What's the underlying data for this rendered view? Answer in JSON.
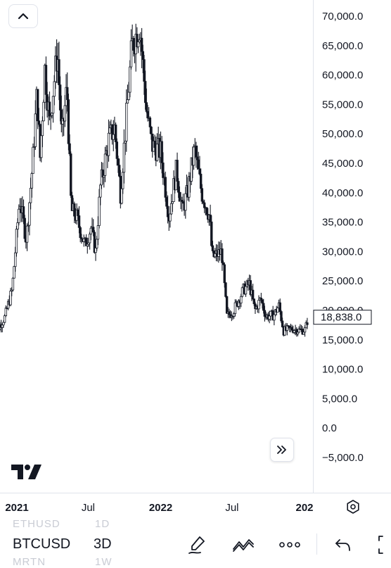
{
  "chart_data": {
    "type": "candlestick",
    "symbol": "BTCUSD",
    "interval": "3D",
    "ylim": [
      -7000,
      70500
    ],
    "y_ticks": [
      -5000,
      0,
      5000,
      10000,
      15000,
      20000,
      25000,
      30000,
      35000,
      40000,
      45000,
      50000,
      55000,
      60000,
      65000,
      70000
    ],
    "y_tick_labels": [
      "−5,000.0",
      "0.0",
      "5,000.0",
      "10,000.0",
      "15,000.0",
      "20,000.0",
      "25,000.0",
      "30,000.0",
      "35,000.0",
      "40,000.0",
      "45,000.0",
      "50,000.0",
      "55,000.0",
      "60,000.0",
      "65,000.0",
      "70,000.0"
    ],
    "x_tick_labels": [
      {
        "label": "2021",
        "date": "2021-01-01",
        "bold": true
      },
      {
        "label": "Jul",
        "date": "2021-07-01",
        "bold": false
      },
      {
        "label": "2022",
        "date": "2022-01-01",
        "bold": true
      },
      {
        "label": "Jul",
        "date": "2022-07-01",
        "bold": false
      },
      {
        "label": "202",
        "date": "2023-01-01",
        "bold": true
      }
    ],
    "last_price": 18838,
    "last_price_label": "18,838.0",
    "series": [
      {
        "points": [
          [
            "2020-11-01",
            15500
          ],
          [
            "2020-12-01",
            18800
          ],
          [
            "2020-12-20",
            23500
          ],
          [
            "2021-01-08",
            39000
          ],
          [
            "2021-01-25",
            32000
          ],
          [
            "2021-02-10",
            45000
          ],
          [
            "2021-02-21",
            57000
          ],
          [
            "2021-03-01",
            46000
          ],
          [
            "2021-03-13",
            61000
          ],
          [
            "2021-03-25",
            52000
          ],
          [
            "2021-04-14",
            64000
          ],
          [
            "2021-04-25",
            49000
          ],
          [
            "2021-05-08",
            58000
          ],
          [
            "2021-05-19",
            37000
          ],
          [
            "2021-06-01",
            36000
          ],
          [
            "2021-06-22",
            31000
          ],
          [
            "2021-07-08",
            34000
          ],
          [
            "2021-07-20",
            30000
          ],
          [
            "2021-08-01",
            41000
          ],
          [
            "2021-08-22",
            49000
          ],
          [
            "2021-09-06",
            51000
          ],
          [
            "2021-09-21",
            40000
          ],
          [
            "2021-10-05",
            52000
          ],
          [
            "2021-10-20",
            65000
          ],
          [
            "2021-11-09",
            68500
          ],
          [
            "2021-11-26",
            54000
          ],
          [
            "2021-12-10",
            48000
          ],
          [
            "2022-01-01",
            47000
          ],
          [
            "2022-01-22",
            36000
          ],
          [
            "2022-02-10",
            44000
          ],
          [
            "2022-02-24",
            37000
          ],
          [
            "2022-03-10",
            40000
          ],
          [
            "2022-03-28",
            47500
          ],
          [
            "2022-04-15",
            40000
          ],
          [
            "2022-05-05",
            36000
          ],
          [
            "2022-05-12",
            29000
          ],
          [
            "2022-06-05",
            30000
          ],
          [
            "2022-06-18",
            19000
          ],
          [
            "2022-07-05",
            20000
          ],
          [
            "2022-07-30",
            23500
          ],
          [
            "2022-08-14",
            24500
          ],
          [
            "2022-08-28",
            20000
          ],
          [
            "2022-09-12",
            22000
          ],
          [
            "2022-09-25",
            19000
          ],
          [
            "2022-10-15",
            19200
          ],
          [
            "2022-10-28",
            20800
          ],
          [
            "2022-11-09",
            16500
          ],
          [
            "2022-11-30",
            16900
          ],
          [
            "2022-12-20",
            16600
          ],
          [
            "2023-01-03",
            16700
          ],
          [
            "2023-01-10",
            18838
          ]
        ]
      }
    ]
  },
  "toolbar": {
    "ghost_above": [
      "ETHUSD",
      "1D"
    ],
    "symbol": "BTCUSD",
    "interval": "3D",
    "ghost_below": [
      "MRTN",
      "1W"
    ]
  },
  "icons": {
    "collapse": "chevron-up-icon",
    "scroll": "double-chevron-right-icon",
    "logo": "tradingview-logo",
    "settings": "settings-icon",
    "draw": "brush-icon",
    "indicators": "indicators-icon",
    "more": "more-icon",
    "undo": "undo-icon",
    "fullscreen": "fullscreen-icon"
  }
}
